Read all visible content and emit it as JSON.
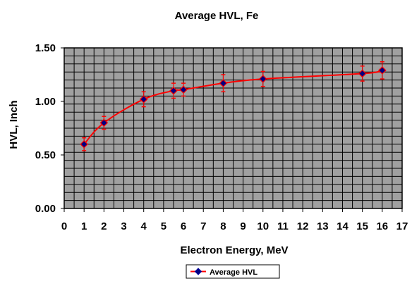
{
  "chart_data": {
    "type": "line",
    "title": "Average HVL, Fe",
    "xlabel": "Electron Energy, MeV",
    "ylabel": "HVL, Inch",
    "xlim": [
      0,
      17
    ],
    "ylim": [
      0,
      1.5
    ],
    "x_ticks": [
      "0",
      "1",
      "2",
      "3",
      "4",
      "5",
      "6",
      "7",
      "8",
      "9",
      "10",
      "11",
      "12",
      "13",
      "14",
      "15",
      "16",
      "17"
    ],
    "y_ticks": [
      "0.00",
      "0.50",
      "1.00",
      "1.50"
    ],
    "grid": true,
    "legend_position": "bottom-center",
    "series": [
      {
        "name": "Average HVL",
        "color": "#ff0000",
        "marker_color": "#000080",
        "x": [
          1,
          2,
          4,
          5.5,
          6,
          8,
          10,
          15,
          16
        ],
        "values": [
          0.6,
          0.8,
          1.02,
          1.1,
          1.11,
          1.17,
          1.21,
          1.26,
          1.29
        ],
        "error": [
          0.06,
          0.06,
          0.07,
          0.07,
          0.06,
          0.08,
          0.07,
          0.07,
          0.08
        ]
      }
    ]
  },
  "colors": {
    "plot_background": "#a0a0a0",
    "grid_line": "#000000"
  }
}
